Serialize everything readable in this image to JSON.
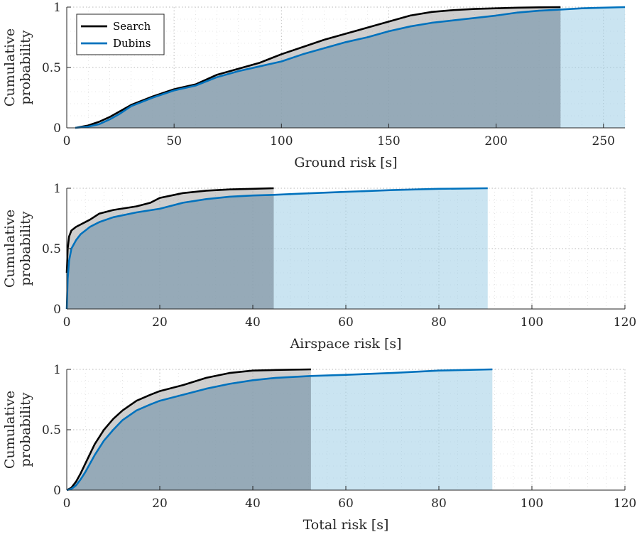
{
  "figure": {
    "legend": {
      "entries": [
        {
          "label": "Search",
          "color": "#000000"
        },
        {
          "label": "Dubins",
          "color": "#0072BD"
        }
      ]
    }
  },
  "colors": {
    "search_line": "#000000",
    "dubins_line": "#0072BD",
    "search_fill": "#a6a6a6",
    "dubins_fill": "#9fcde5",
    "grid": "#b0b0b0"
  },
  "chart_data": [
    {
      "type": "line",
      "id": "ground",
      "xlabel": "Ground risk [s]",
      "ylabel": "Cumulative probability",
      "ylabel_lines": [
        "Cumulative",
        "probability"
      ],
      "xlim": [
        0,
        260
      ],
      "ylim": [
        0,
        1
      ],
      "xticks": [
        0,
        50,
        100,
        150,
        200,
        250
      ],
      "yticks": [
        0,
        0.5,
        1
      ],
      "ytick_labels": [
        "0",
        "0.5",
        "1"
      ],
      "grid": "dotted major and minor",
      "series": [
        {
          "name": "Search",
          "x": [
            4,
            10,
            15,
            20,
            25,
            30,
            40,
            50,
            60,
            70,
            80,
            90,
            100,
            110,
            120,
            130,
            140,
            150,
            160,
            170,
            180,
            190,
            200,
            210,
            220,
            230
          ],
          "y": [
            0,
            0.02,
            0.05,
            0.09,
            0.14,
            0.19,
            0.26,
            0.32,
            0.36,
            0.44,
            0.49,
            0.54,
            0.61,
            0.67,
            0.73,
            0.78,
            0.83,
            0.88,
            0.93,
            0.96,
            0.975,
            0.985,
            0.99,
            0.995,
            0.998,
            1.0
          ]
        },
        {
          "name": "Dubins",
          "x": [
            4,
            10,
            15,
            20,
            25,
            30,
            40,
            50,
            60,
            70,
            80,
            90,
            100,
            110,
            120,
            130,
            140,
            150,
            160,
            170,
            180,
            190,
            200,
            210,
            220,
            230,
            240,
            250,
            260
          ],
          "y": [
            0,
            0.01,
            0.03,
            0.07,
            0.12,
            0.18,
            0.25,
            0.31,
            0.35,
            0.42,
            0.47,
            0.51,
            0.55,
            0.61,
            0.66,
            0.71,
            0.75,
            0.8,
            0.84,
            0.87,
            0.89,
            0.91,
            0.93,
            0.955,
            0.97,
            0.98,
            0.99,
            0.995,
            1.0
          ]
        }
      ]
    },
    {
      "type": "line",
      "id": "airspace",
      "xlabel": "Airspace risk [s]",
      "ylabel": "Cumulative probability",
      "ylabel_lines": [
        "Cumulative",
        "probability"
      ],
      "xlim": [
        0,
        120
      ],
      "ylim": [
        0,
        1
      ],
      "xticks": [
        0,
        20,
        40,
        60,
        80,
        100,
        120
      ],
      "yticks": [
        0,
        0.5,
        1
      ],
      "ytick_labels": [
        "0",
        "0.5",
        "1"
      ],
      "grid": "dotted major and minor",
      "series": [
        {
          "name": "Search",
          "x": [
            0,
            0.2,
            0.5,
            1,
            2,
            3,
            5,
            7,
            10,
            15,
            18,
            20,
            25,
            30,
            35,
            40,
            44.5
          ],
          "y": [
            0.3,
            0.5,
            0.6,
            0.65,
            0.68,
            0.7,
            0.74,
            0.79,
            0.82,
            0.85,
            0.88,
            0.92,
            0.96,
            0.98,
            0.99,
            0.995,
            1.0
          ]
        },
        {
          "name": "Dubins",
          "x": [
            0,
            0.2,
            0.5,
            1,
            2,
            3,
            5,
            7,
            10,
            15,
            20,
            25,
            30,
            35,
            40,
            44.5,
            50,
            60,
            70,
            80,
            90.5
          ],
          "y": [
            0,
            0.25,
            0.4,
            0.5,
            0.57,
            0.62,
            0.68,
            0.72,
            0.76,
            0.8,
            0.83,
            0.88,
            0.91,
            0.93,
            0.94,
            0.945,
            0.955,
            0.97,
            0.985,
            0.995,
            1.0
          ]
        }
      ]
    },
    {
      "type": "line",
      "id": "total",
      "xlabel": "Total risk [s]",
      "ylabel": "Cumulative probability",
      "ylabel_lines": [
        "Cumulative",
        "probability"
      ],
      "xlim": [
        0,
        120
      ],
      "ylim": [
        0,
        1
      ],
      "xticks": [
        0,
        20,
        40,
        60,
        80,
        100,
        120
      ],
      "yticks": [
        0,
        0.5,
        1
      ],
      "ytick_labels": [
        "0",
        "0.5",
        "1"
      ],
      "grid": "dotted major and minor",
      "series": [
        {
          "name": "Search",
          "x": [
            0,
            1,
            2,
            3,
            4,
            5,
            6,
            8,
            10,
            12,
            15,
            18,
            20,
            25,
            30,
            35,
            40,
            45,
            52.5
          ],
          "y": [
            0,
            0.02,
            0.07,
            0.14,
            0.22,
            0.3,
            0.38,
            0.5,
            0.59,
            0.66,
            0.74,
            0.79,
            0.82,
            0.87,
            0.93,
            0.97,
            0.99,
            0.995,
            1.0
          ]
        },
        {
          "name": "Dubins",
          "x": [
            0,
            1,
            2,
            3,
            4,
            5,
            6,
            8,
            10,
            12,
            15,
            18,
            20,
            25,
            30,
            35,
            40,
            45,
            52.5,
            60,
            70,
            80,
            91.5
          ],
          "y": [
            0,
            0.01,
            0.04,
            0.09,
            0.15,
            0.22,
            0.29,
            0.41,
            0.5,
            0.58,
            0.66,
            0.71,
            0.74,
            0.79,
            0.84,
            0.88,
            0.91,
            0.93,
            0.945,
            0.955,
            0.97,
            0.99,
            1.0
          ]
        }
      ]
    }
  ]
}
